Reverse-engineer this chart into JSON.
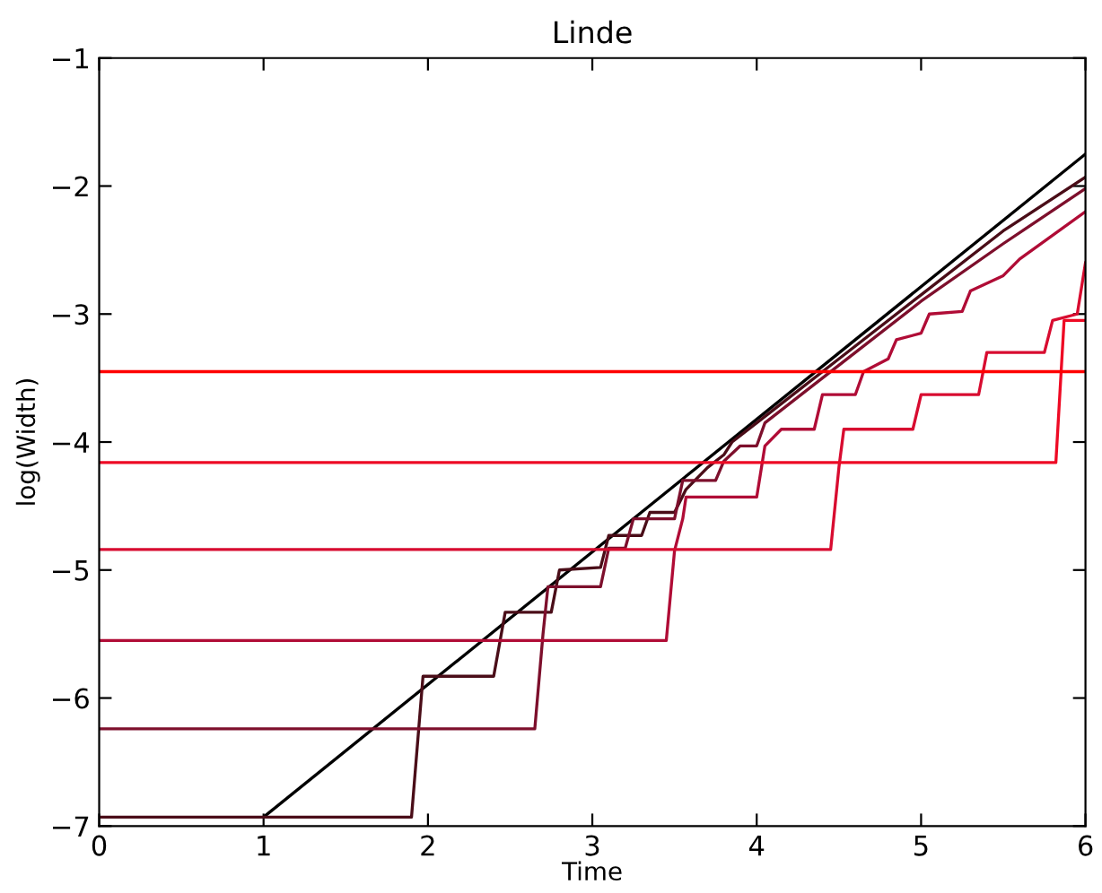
{
  "chart_data": {
    "type": "line",
    "title": "Linde",
    "xlabel": "Time",
    "ylabel": "log(Width)",
    "xlim": [
      0,
      6
    ],
    "ylim": [
      -7,
      -1
    ],
    "xticks": [
      0,
      1,
      2,
      3,
      4,
      5,
      6
    ],
    "yticks": [
      -7,
      -6,
      -5,
      -4,
      -3,
      -2,
      -1
    ],
    "grid": false,
    "series": [
      {
        "color": "#000000",
        "x": [
          1,
          6
        ],
        "values": [
          -6.93,
          -1.75
        ]
      },
      {
        "color": "#4a0d18",
        "x": [
          0,
          1.9,
          1.97,
          2.4,
          2.47,
          2.75,
          2.8,
          3.05,
          3.1,
          3.3,
          3.35,
          3.5,
          3.57,
          3.7,
          3.8,
          3.85,
          4.0,
          4.1,
          4.5,
          5.0,
          5.5,
          6.0
        ],
        "values": [
          -6.93,
          -6.93,
          -5.83,
          -5.83,
          -5.33,
          -5.33,
          -5.0,
          -4.98,
          -4.73,
          -4.73,
          -4.55,
          -4.55,
          -4.37,
          -4.2,
          -4.1,
          -4.0,
          -3.85,
          -3.75,
          -3.35,
          -2.85,
          -2.35,
          -1.93
        ]
      },
      {
        "color": "#7d0f2c",
        "x": [
          0,
          2.65,
          2.7,
          2.73,
          3.05,
          3.1,
          3.2,
          3.25,
          3.5,
          3.55,
          3.75,
          3.8,
          3.9,
          4.0,
          4.05,
          4.3,
          4.5,
          5.0,
          5.5,
          6.0
        ],
        "values": [
          -6.24,
          -6.24,
          -5.5,
          -5.13,
          -5.13,
          -4.83,
          -4.83,
          -4.6,
          -4.6,
          -4.3,
          -4.3,
          -4.15,
          -4.03,
          -4.03,
          -3.85,
          -3.6,
          -3.4,
          -2.9,
          -2.45,
          -2.02
        ]
      },
      {
        "color": "#b00c36",
        "x": [
          0,
          3.45,
          3.5,
          3.55,
          3.57,
          4.0,
          4.05,
          4.15,
          4.35,
          4.4,
          4.6,
          4.65,
          4.8,
          4.85,
          5.0,
          5.05,
          5.25,
          5.3,
          5.5,
          5.6,
          6.0
        ],
        "values": [
          -5.55,
          -5.55,
          -4.85,
          -4.6,
          -4.43,
          -4.43,
          -4.03,
          -3.9,
          -3.9,
          -3.63,
          -3.63,
          -3.45,
          -3.35,
          -3.2,
          -3.15,
          -3.0,
          -2.98,
          -2.82,
          -2.7,
          -2.57,
          -2.2
        ]
      },
      {
        "color": "#d80c30",
        "x": [
          0,
          4.45,
          4.5,
          4.53,
          4.95,
          5.0,
          5.35,
          5.4,
          5.75,
          5.8,
          5.95,
          6.0
        ],
        "values": [
          -4.84,
          -4.84,
          -4.2,
          -3.9,
          -3.9,
          -3.63,
          -3.63,
          -3.3,
          -3.3,
          -3.05,
          -3.0,
          -2.6
        ]
      },
      {
        "color": "#ee0a24",
        "x": [
          0,
          5.82,
          5.87,
          6.0
        ],
        "values": [
          -4.16,
          -4.16,
          -3.05,
          -3.05
        ]
      },
      {
        "color": "#ff0000",
        "x": [
          0,
          6
        ],
        "values": [
          -3.45,
          -3.45
        ]
      }
    ]
  }
}
